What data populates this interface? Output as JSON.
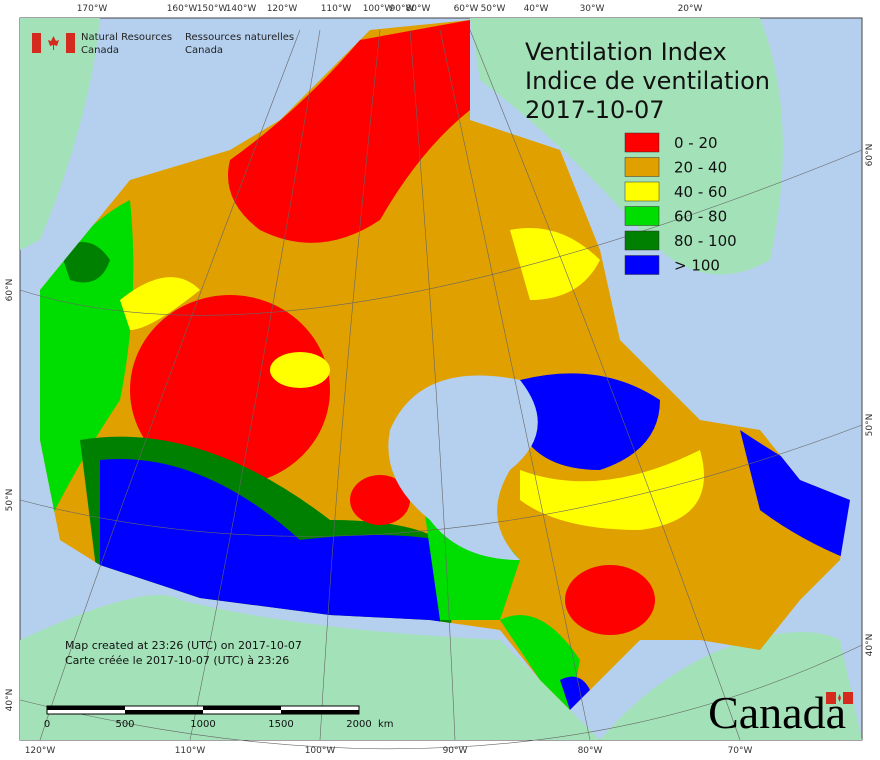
{
  "header": {
    "agency_en": [
      "Natural Resources",
      "Canada"
    ],
    "agency_fr": [
      "Ressources naturelles",
      "Canada"
    ]
  },
  "title": [
    "Ventilation Index",
    "Indice de ventilation",
    "2017-10-07"
  ],
  "legend": [
    {
      "label": "0 - 20",
      "color": "#ff0000"
    },
    {
      "label": "20 - 40",
      "color": "#dfa000"
    },
    {
      "label": "40 - 60",
      "color": "#ffff00"
    },
    {
      "label": "60 - 80",
      "color": "#00dd00"
    },
    {
      "label": "80 - 100",
      "color": "#008000"
    },
    {
      "label": "> 100",
      "color": "#0000ff"
    }
  ],
  "graticule": {
    "top": [
      "170°W",
      "160°W",
      "150°W",
      "140°W",
      "120°W",
      "110°W",
      "100°W",
      "90°W",
      "80°W",
      "60°W",
      "50°W",
      "40°W",
      "30°W",
      "20°W"
    ],
    "bottom": [
      "120°W",
      "110°W",
      "100°W",
      "90°W",
      "80°W",
      "70°W"
    ],
    "left": [
      "60°N",
      "50°N",
      "40°N"
    ],
    "right": [
      "60°N",
      "50°N",
      "40°N"
    ]
  },
  "notes": [
    "Map created at 23:26 (UTC) on 2017-10-07",
    "Carte créée le 2017-10-07 (UTC) à 23:26"
  ],
  "scale": {
    "labels": [
      "0",
      "500",
      "1000",
      "1500",
      "2000"
    ],
    "unit": "km"
  },
  "wordmark": "Canada"
}
